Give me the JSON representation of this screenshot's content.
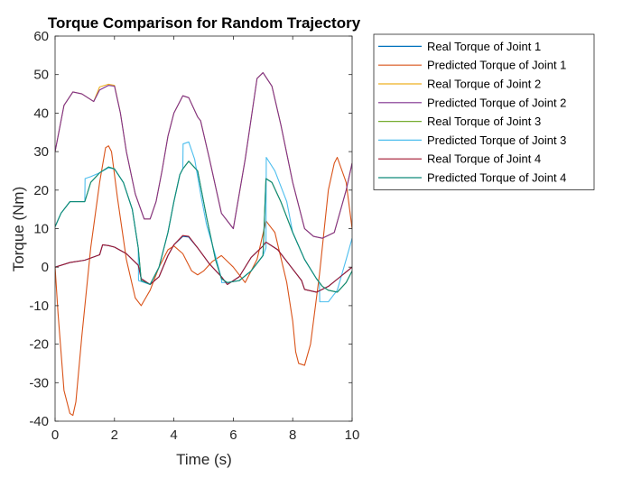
{
  "chart_data": {
    "type": "line",
    "title": "Torque Comparison for Random Trajectory",
    "xlabel": "Time (s)",
    "ylabel": "Torque (Nm)",
    "xlim": [
      0,
      10
    ],
    "ylim": [
      -40,
      60
    ],
    "xticks": [
      0,
      2,
      4,
      6,
      8,
      10
    ],
    "yticks": [
      -40,
      -30,
      -20,
      -10,
      0,
      10,
      20,
      30,
      40,
      50,
      60
    ],
    "grid": false,
    "legend_position": "outside-top-right",
    "series": [
      {
        "name": "Real Torque of Joint 1",
        "color": "#0072BD",
        "x": [
          0,
          0.5,
          1.0,
          1.5,
          1.6,
          1.8,
          2.0,
          2.4,
          2.8,
          2.9,
          3.2,
          3.5,
          3.8,
          4.0,
          4.3,
          4.5,
          4.8,
          5.2,
          5.6,
          5.8,
          6.2,
          6.6,
          7.0,
          7.1,
          7.5,
          7.8,
          8.0,
          8.3,
          8.4,
          8.8,
          9.2,
          9.6,
          10.0
        ],
        "y": [
          0,
          1.2,
          1.8,
          3.2,
          5.8,
          5.6,
          5.2,
          3.5,
          0.5,
          -3.0,
          -4.5,
          -2.5,
          3.0,
          5.8,
          8.0,
          7.8,
          5.0,
          0.8,
          -2.5,
          -4.5,
          -2.5,
          2.5,
          5.5,
          6.5,
          4.5,
          1.5,
          -0.5,
          -3.5,
          -5.8,
          -6.5,
          -5.0,
          -2.5,
          0
        ]
      },
      {
        "name": "Predicted Torque of Joint 1",
        "color": "#D95319",
        "x": [
          0,
          0.1,
          0.3,
          0.5,
          0.6,
          0.7,
          0.9,
          1.2,
          1.5,
          1.7,
          1.8,
          1.9,
          2.1,
          2.4,
          2.7,
          2.9,
          3.2,
          3.5,
          3.8,
          4.0,
          4.3,
          4.6,
          4.8,
          5.0,
          5.3,
          5.6,
          6.0,
          6.4,
          6.8,
          7.1,
          7.4,
          7.8,
          8.0,
          8.1,
          8.2,
          8.4,
          8.6,
          8.9,
          9.2,
          9.4,
          9.5,
          9.8,
          10.0
        ],
        "y": [
          0,
          -12,
          -32,
          -38,
          -38.5,
          -35,
          -18,
          5,
          22,
          31,
          31.5,
          30,
          18,
          2,
          -8,
          -10,
          -6,
          0,
          4.5,
          5.5,
          3.5,
          -1,
          -2,
          -1,
          1.5,
          3,
          0,
          -4,
          2,
          12,
          9,
          -4,
          -14,
          -22,
          -25,
          -25.5,
          -20,
          -2,
          20,
          27,
          28.5,
          22,
          10
        ]
      },
      {
        "name": "Real Torque of Joint 2",
        "color": "#EDB120",
        "x": [
          0,
          0.3,
          0.6,
          0.9,
          1.2,
          1.3,
          1.5,
          1.8,
          2.0,
          2.2,
          2.4,
          2.7,
          3.0,
          3.2,
          3.4,
          3.6,
          3.8,
          4.0,
          4.3,
          4.5,
          4.8,
          4.9,
          5.2,
          5.6,
          6.0,
          6.4,
          6.8,
          7.0,
          7.3,
          7.6,
          8.0,
          8.4,
          8.7,
          9.0,
          9.4,
          9.8,
          10.0
        ],
        "y": [
          30,
          42,
          45.5,
          45,
          43.5,
          43,
          46.8,
          47.5,
          47.2,
          40,
          30,
          19,
          12.5,
          12.5,
          17,
          25,
          34,
          40,
          44.5,
          44,
          39,
          38,
          28,
          14,
          10,
          28,
          49,
          50.5,
          47,
          37,
          22,
          10,
          8,
          7.5,
          9,
          20,
          27
        ]
      },
      {
        "name": "Predicted Torque of Joint 2",
        "color": "#7E2F8E",
        "x": [
          0,
          0.3,
          0.6,
          0.9,
          1.2,
          1.3,
          1.5,
          1.8,
          2.0,
          2.2,
          2.4,
          2.7,
          3.0,
          3.2,
          3.4,
          3.6,
          3.8,
          4.0,
          4.3,
          4.5,
          4.8,
          4.9,
          5.2,
          5.6,
          6.0,
          6.4,
          6.8,
          7.0,
          7.3,
          7.6,
          8.0,
          8.4,
          8.7,
          9.0,
          9.4,
          9.8,
          10.0
        ],
        "y": [
          30,
          42,
          45.5,
          45,
          43.5,
          43,
          46,
          47.2,
          47,
          40,
          30,
          19,
          12.5,
          12.5,
          17,
          25,
          34,
          40,
          44.5,
          44,
          39,
          38,
          28,
          14,
          10,
          28,
          49,
          50.5,
          47,
          37,
          22,
          10,
          8,
          7.5,
          9,
          20,
          27
        ]
      },
      {
        "name": "Real Torque of Joint 3",
        "color": "#77AC30",
        "x": [
          0,
          0.2,
          0.5,
          0.8,
          1.0,
          1.2,
          1.5,
          1.8,
          2.0,
          2.3,
          2.6,
          2.8,
          2.9,
          3.2,
          3.5,
          3.8,
          4.0,
          4.2,
          4.3,
          4.5,
          4.8,
          5.1,
          5.4,
          5.6,
          5.8,
          6.2,
          6.6,
          7.0,
          7.1,
          7.3,
          7.6,
          8.0,
          8.4,
          8.8,
          9.0,
          9.2,
          9.5,
          9.8,
          10.0
        ],
        "y": [
          10.5,
          14,
          17,
          17,
          17,
          22,
          24.5,
          26,
          25.5,
          22,
          15,
          5,
          -3.5,
          -4.5,
          0,
          9,
          17,
          24,
          25.5,
          27.5,
          25,
          13,
          2,
          -3,
          -4,
          -3.5,
          -1,
          3,
          23,
          22,
          17,
          9,
          2,
          -3,
          -5,
          -6,
          -6.5,
          -4,
          -1
        ]
      },
      {
        "name": "Predicted Torque of Joint 3",
        "color": "#4DBEEE",
        "x": [
          0,
          0.2,
          0.5,
          0.8,
          1.0,
          1.01,
          1.2,
          1.5,
          1.8,
          2.0,
          2.3,
          2.6,
          2.8,
          2.81,
          3.2,
          3.5,
          3.8,
          4.0,
          4.2,
          4.3,
          4.31,
          4.5,
          4.7,
          4.9,
          5.1,
          5.4,
          5.6,
          5.61,
          5.8,
          6.2,
          6.6,
          7.0,
          7.1,
          7.11,
          7.4,
          7.8,
          8.0,
          8.4,
          8.8,
          8.9,
          8.91,
          9.2,
          9.5,
          9.8,
          10.0
        ],
        "y": [
          10.5,
          14,
          17,
          17,
          17,
          23,
          23.5,
          24.5,
          25.8,
          25.5,
          22,
          15,
          5,
          -3.5,
          -4.5,
          0,
          9,
          17,
          24,
          25.5,
          32,
          32.5,
          28,
          19,
          11,
          3,
          -3,
          -4,
          -4,
          -3.5,
          -1,
          3,
          5,
          28.5,
          25,
          17,
          9,
          2,
          -3,
          -4,
          -9,
          -9,
          -6,
          2,
          7.5
        ]
      },
      {
        "name": "Real Torque of Joint 4",
        "color": "#A2142F",
        "x": [
          0,
          0.5,
          1.0,
          1.5,
          1.6,
          1.8,
          2.0,
          2.4,
          2.8,
          2.9,
          3.2,
          3.5,
          3.8,
          4.0,
          4.3,
          4.5,
          4.8,
          5.2,
          5.6,
          5.8,
          6.2,
          6.6,
          7.0,
          7.1,
          7.5,
          7.8,
          8.0,
          8.3,
          8.4,
          8.8,
          9.2,
          9.6,
          10.0
        ],
        "y": [
          0,
          1.2,
          1.8,
          3.2,
          5.8,
          5.6,
          5.2,
          3.5,
          0.5,
          -3.0,
          -4.5,
          -2.5,
          3.0,
          5.8,
          8.2,
          8.0,
          5.0,
          0.8,
          -2.5,
          -4.5,
          -2.5,
          2.5,
          5.5,
          6.5,
          4.5,
          1.5,
          -0.5,
          -3.5,
          -5.8,
          -6.5,
          -5.0,
          -2.5,
          0
        ]
      },
      {
        "name": "Predicted Torque of Joint 4",
        "color": "#0E8A7A",
        "x": [
          0,
          0.2,
          0.5,
          0.8,
          1.0,
          1.2,
          1.5,
          1.8,
          2.0,
          2.3,
          2.6,
          2.8,
          2.9,
          3.2,
          3.5,
          3.8,
          4.0,
          4.2,
          4.3,
          4.5,
          4.8,
          5.1,
          5.4,
          5.6,
          5.8,
          6.2,
          6.6,
          7.0,
          7.1,
          7.3,
          7.6,
          8.0,
          8.4,
          8.8,
          9.0,
          9.2,
          9.5,
          9.8,
          10.0
        ],
        "y": [
          10.5,
          14,
          17,
          17,
          17,
          22,
          24.5,
          26,
          25.5,
          22,
          15,
          5,
          -3.5,
          -4.5,
          0,
          9,
          17,
          24,
          25.5,
          27.5,
          25,
          13,
          2,
          -3,
          -4,
          -3.5,
          -1,
          3,
          23,
          22,
          17,
          9,
          2,
          -3,
          -5,
          -6,
          -6.5,
          -4,
          -1
        ]
      }
    ]
  }
}
